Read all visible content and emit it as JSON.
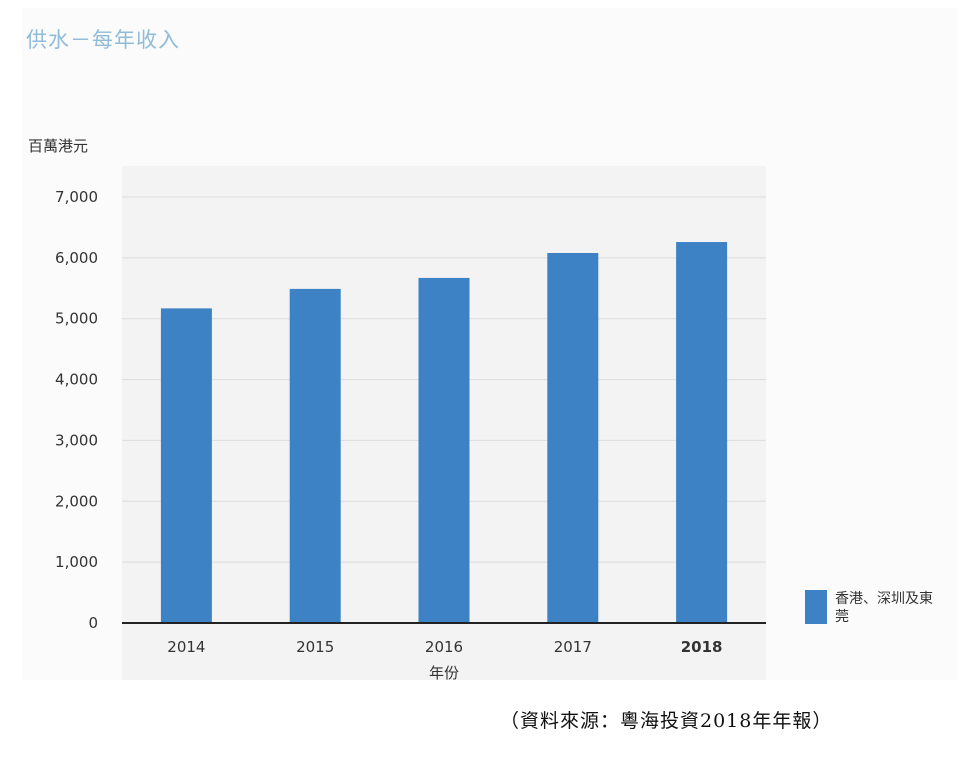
{
  "title": "供水－每年收入",
  "unit_label": "百萬港元",
  "source_note": "（資料來源：粵海投資2018年年報）",
  "legend": [
    {
      "label": "香港、深圳及東莞",
      "color": "#3d82c4"
    }
  ],
  "chart_data": {
    "type": "bar",
    "title": "供水－每年收入",
    "xlabel": "年份",
    "ylabel": "百萬港元",
    "categories": [
      "2014",
      "2015",
      "2016",
      "2017",
      "2018"
    ],
    "highlight_category": "2018",
    "series": [
      {
        "name": "香港、深圳及東莞",
        "values": [
          5170,
          5490,
          5670,
          6080,
          6260
        ]
      }
    ],
    "ylim": [
      0,
      7000
    ],
    "yticks": [
      0,
      1000,
      2000,
      3000,
      4000,
      5000,
      6000,
      7000
    ],
    "ytick_labels": [
      "0",
      "1,000",
      "2,000",
      "3,000",
      "4,000",
      "5,000",
      "6,000",
      "7,000"
    ],
    "grid": true,
    "legend_position": "bottom-right",
    "bar_color": "#3d82c4"
  }
}
